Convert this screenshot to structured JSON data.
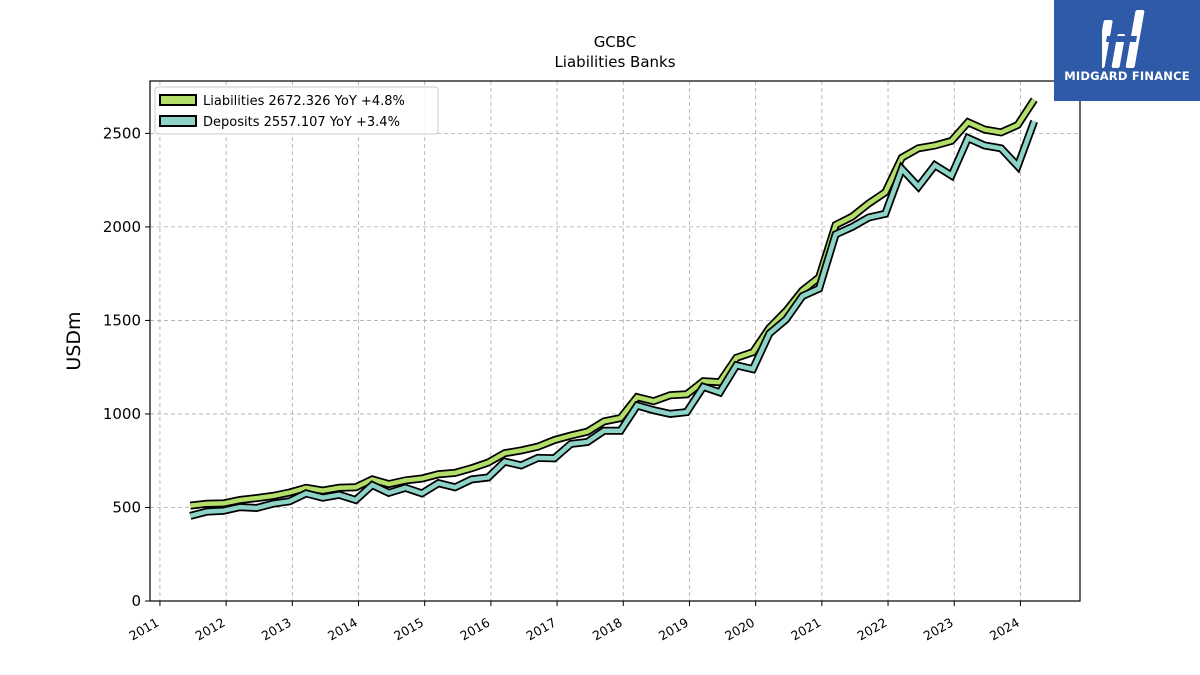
{
  "brand": {
    "name": "MIDGARD FINANCE",
    "color": "#2f5aa8"
  },
  "chart_data": {
    "type": "line",
    "title": "GCBC",
    "subtitle": "Liabilities Banks",
    "ylabel": "USDm",
    "xlabel": "",
    "ylim": [
      0,
      2780
    ],
    "yticks": [
      0,
      500,
      1000,
      1500,
      2000,
      2500
    ],
    "xlim": [
      2010.85,
      2024.9
    ],
    "xticks": [
      "2011",
      "2012",
      "2013",
      "2014",
      "2015",
      "2016",
      "2017",
      "2018",
      "2019",
      "2020",
      "2021",
      "2022",
      "2023",
      "2024"
    ],
    "grid": true,
    "legend_position": "top-left",
    "x": [
      "2011-06",
      "2011-09",
      "2011-12",
      "2012-03",
      "2012-06",
      "2012-09",
      "2012-12",
      "2013-03",
      "2013-06",
      "2013-09",
      "2013-12",
      "2014-03",
      "2014-06",
      "2014-09",
      "2014-12",
      "2015-03",
      "2015-06",
      "2015-09",
      "2015-12",
      "2016-03",
      "2016-06",
      "2016-09",
      "2016-12",
      "2017-03",
      "2017-06",
      "2017-09",
      "2017-12",
      "2018-03",
      "2018-06",
      "2018-09",
      "2018-12",
      "2019-03",
      "2019-06",
      "2019-09",
      "2019-12",
      "2020-03",
      "2020-06",
      "2020-09",
      "2020-12",
      "2021-03",
      "2021-06",
      "2021-09",
      "2021-12",
      "2022-03",
      "2022-06",
      "2022-09",
      "2022-12",
      "2023-03",
      "2023-06",
      "2023-09",
      "2023-12",
      "2024-03"
    ],
    "series": [
      {
        "name": "Liabilities",
        "legend_label": "Liabilities  2672.326 YoY +4.8%",
        "color": "#b3de69",
        "values": [
          510,
          520,
          522,
          540,
          550,
          562,
          580,
          605,
          590,
          605,
          608,
          650,
          625,
          645,
          655,
          678,
          685,
          710,
          740,
          790,
          805,
          825,
          860,
          885,
          905,
          960,
          978,
          1090,
          1068,
          1100,
          1105,
          1175,
          1170,
          1300,
          1330,
          1460,
          1550,
          1660,
          1730,
          2010,
          2055,
          2125,
          2185,
          2370,
          2420,
          2435,
          2460,
          2560,
          2520,
          2505,
          2545,
          2680
        ]
      },
      {
        "name": "Deposits",
        "legend_label": "Deposits  2557.107 YoY +3.4%",
        "color": "#8dd3c7",
        "values": [
          455,
          478,
          482,
          502,
          497,
          520,
          533,
          575,
          552,
          568,
          540,
          620,
          578,
          605,
          575,
          630,
          608,
          650,
          660,
          745,
          725,
          765,
          763,
          840,
          850,
          910,
          910,
          1045,
          1020,
          1000,
          1010,
          1145,
          1115,
          1260,
          1240,
          1430,
          1505,
          1630,
          1670,
          1960,
          2000,
          2050,
          2070,
          2310,
          2215,
          2330,
          2275,
          2475,
          2435,
          2420,
          2325,
          2565
        ]
      }
    ]
  }
}
